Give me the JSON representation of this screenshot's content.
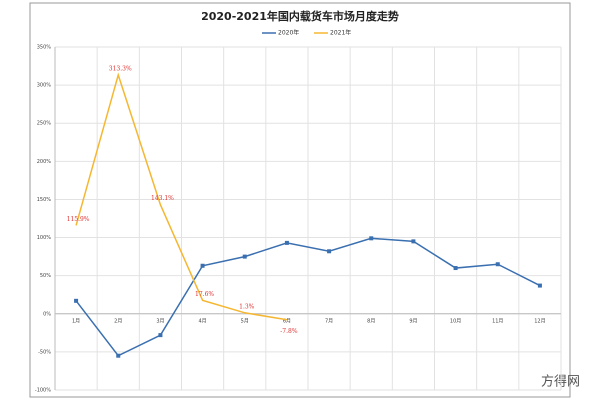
{
  "chart_data": {
    "type": "line",
    "title": "2020-2021年国内载货车市场月度走势",
    "categories": [
      "1月",
      "2月",
      "3月",
      "4月",
      "5月",
      "6月",
      "7月",
      "8月",
      "9月",
      "10月",
      "11月",
      "12月"
    ],
    "series": [
      {
        "name": "2020年",
        "color": "#3a6fb0",
        "values": [
          17,
          -55,
          -28,
          63,
          75,
          93,
          82,
          99,
          95,
          60,
          65,
          37
        ]
      },
      {
        "name": "2021年",
        "color": "#f5b731",
        "values": [
          115.9,
          313.3,
          143.1,
          17.6,
          1.3,
          -7.8,
          null,
          null,
          null,
          null,
          null,
          null
        ],
        "value_labels": [
          "115.9%",
          "313.3%",
          "143.1%",
          "17.6%",
          "1.3%",
          "-7.8%",
          null,
          null,
          null,
          null,
          null,
          null
        ]
      }
    ],
    "ylim": [
      -100,
      350
    ],
    "yticks": [
      {
        "value": -100,
        "label": "-100%"
      },
      {
        "value": -50,
        "label": "-50%"
      },
      {
        "value": 0,
        "label": "0%"
      },
      {
        "value": 50,
        "label": "50%"
      },
      {
        "value": 100,
        "label": "100%"
      },
      {
        "value": 150,
        "label": "150%"
      },
      {
        "value": 200,
        "label": "200%"
      },
      {
        "value": 250,
        "label": "250%"
      },
      {
        "value": 300,
        "label": "300%"
      },
      {
        "value": 350,
        "label": "350%"
      }
    ],
    "grid": true,
    "legend": "top",
    "watermark": "方得网"
  }
}
